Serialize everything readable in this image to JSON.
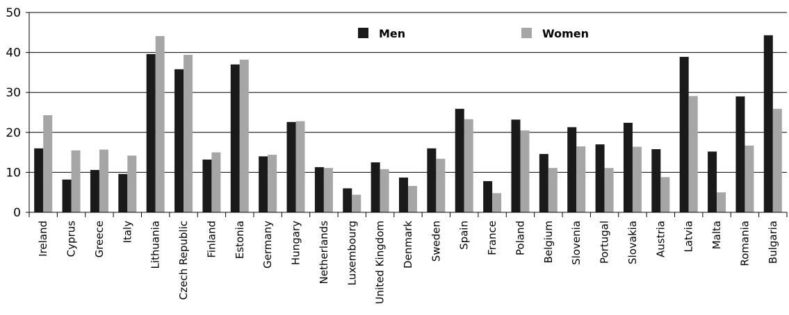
{
  "chart_data": {
    "type": "bar",
    "title": "",
    "xlabel": "",
    "ylabel": "",
    "ylim": [
      0,
      50
    ],
    "yticks": [
      0,
      10,
      20,
      30,
      40,
      50
    ],
    "grid": true,
    "legend_position": "top-center",
    "categories": [
      "Ireland",
      "Cyprus",
      "Greece",
      "Italy",
      "Lithuania",
      "Czech Republic",
      "Finland",
      "Estonia",
      "Germany",
      "Hungary",
      "Netherlands",
      "Luxembourg",
      "United Kingdom",
      "Denmark",
      "Sweden",
      "Spain",
      "France",
      "Poland",
      "Belgium",
      "Slovenia",
      "Portugal",
      "Slovakia",
      "Austria",
      "Latvia",
      "Malta",
      "Romania",
      "Bulgaria"
    ],
    "series": [
      {
        "name": "Men",
        "color": "#1a1a1a",
        "values": [
          16.0,
          8.2,
          10.6,
          9.6,
          39.6,
          35.8,
          13.2,
          37.0,
          14.0,
          22.6,
          11.3,
          6.0,
          12.5,
          8.7,
          16.0,
          25.9,
          7.8,
          23.2,
          14.6,
          21.3,
          17.0,
          22.4,
          15.8,
          38.9,
          15.2,
          29.0,
          44.3
        ]
      },
      {
        "name": "Women",
        "color": "#a6a6a6",
        "values": [
          24.3,
          15.5,
          15.7,
          14.2,
          44.1,
          39.4,
          15.0,
          38.2,
          14.4,
          22.8,
          11.1,
          4.4,
          10.8,
          6.6,
          13.4,
          23.3,
          4.8,
          20.5,
          11.1,
          16.5,
          11.1,
          16.4,
          8.8,
          29.1,
          5.0,
          16.7,
          25.9
        ]
      }
    ]
  }
}
